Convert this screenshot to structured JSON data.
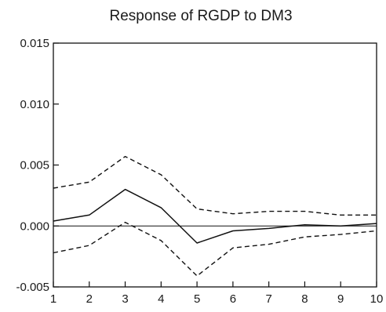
{
  "chart_data": {
    "type": "line",
    "title": "Response of RGDP to DM3",
    "xlabel": "",
    "ylabel": "",
    "x": [
      1,
      2,
      3,
      4,
      5,
      6,
      7,
      8,
      9,
      10
    ],
    "xlim": [
      1,
      10
    ],
    "ylim": [
      -0.005,
      0.015
    ],
    "yticks": [
      "0.015",
      "0.010",
      "0.005",
      "0.000",
      "-0.005"
    ],
    "ytick_values": [
      0.015,
      0.01,
      0.005,
      0.0,
      -0.005
    ],
    "xticks": [
      "1",
      "2",
      "3",
      "4",
      "5",
      "6",
      "7",
      "8",
      "9",
      "10"
    ],
    "grid": false,
    "legend": "none",
    "zero_line": true,
    "series": [
      {
        "style": "solid",
        "color": "#111111",
        "values": [
          0.0004,
          0.0009,
          0.003,
          0.0015,
          -0.0014,
          -0.0004,
          -0.0002,
          0.0001,
          0.0,
          0.0002
        ]
      },
      {
        "style": "dashed",
        "color": "#111111",
        "values": [
          0.0031,
          0.0036,
          0.0057,
          0.0042,
          0.0014,
          0.001,
          0.0012,
          0.0012,
          0.0009,
          0.0009
        ]
      },
      {
        "style": "dashed",
        "color": "#111111",
        "values": [
          -0.0022,
          -0.0016,
          0.0003,
          -0.0012,
          -0.0041,
          -0.0018,
          -0.0015,
          -0.0009,
          -0.0007,
          -0.0004
        ]
      }
    ]
  }
}
